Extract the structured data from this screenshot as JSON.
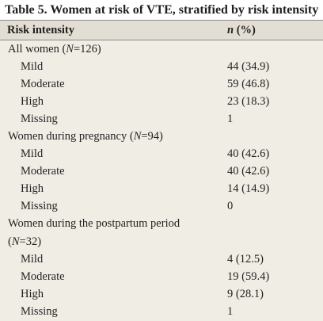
{
  "table": {
    "caption": "Table 5. Women at risk of VTE, stratified by risk intensity",
    "header": {
      "col1": "Risk intensity",
      "col2_n": "n",
      "col2_rest": " (%)"
    },
    "groups": [
      {
        "title_pre": "All women (",
        "title_it": "N",
        "title_post": "=126)",
        "rows": [
          {
            "label": "Mild",
            "value": "44 (34.9)"
          },
          {
            "label": "Moderate",
            "value": "59 (46.8)"
          },
          {
            "label": "High",
            "value": "23 (18.3)"
          },
          {
            "label": "Missing",
            "value": "1"
          }
        ]
      },
      {
        "title_pre": "Women during pregnancy (",
        "title_it": "N",
        "title_post": "=94)",
        "rows": [
          {
            "label": "Mild",
            "value": "40 (42.6)"
          },
          {
            "label": "Moderate",
            "value": "40 (42.6)"
          },
          {
            "label": "High",
            "value": "14 (14.9)"
          },
          {
            "label": "Missing",
            "value": "0"
          }
        ]
      },
      {
        "title_line1": "Women during the postpartum period",
        "title_pre": "(",
        "title_it": "N",
        "title_post": "=32)",
        "rows": [
          {
            "label": "Mild",
            "value": "4 (12.5)"
          },
          {
            "label": "Moderate",
            "value": "19 (59.4)"
          },
          {
            "label": "High",
            "value": "9 (28.1)"
          },
          {
            "label": "Missing",
            "value": "1"
          }
        ]
      }
    ]
  }
}
